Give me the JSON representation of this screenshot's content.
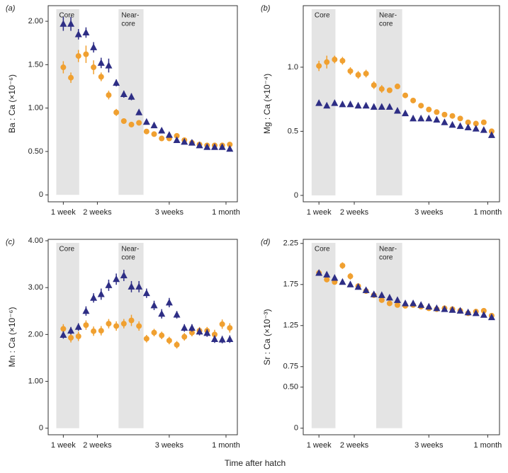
{
  "axis_label": "Time after hatch",
  "chart_data": [
    {
      "type": "scatter",
      "panel": "(a)",
      "ylabel": "Ba : Ca (×10⁻⁶)",
      "x": [
        1,
        2,
        3,
        4,
        5,
        6,
        7,
        8,
        9,
        10,
        11,
        12,
        13,
        14,
        15,
        16,
        17,
        18,
        19,
        20,
        21,
        22,
        23
      ],
      "xlim": [
        -1,
        24
      ],
      "xticks": [
        {
          "value": 1,
          "label": "1 week"
        },
        {
          "value": 5.5,
          "label": "2 weeks"
        },
        {
          "value": 15,
          "label": "3 weeks"
        },
        {
          "value": 22.5,
          "label": "1 month"
        }
      ],
      "ylim": [
        -0.08,
        2.18
      ],
      "yticks": [
        0,
        {
          "value": 0.5,
          "label": "0.50"
        },
        {
          "value": 1,
          "label": "1.00"
        },
        {
          "value": 1.5,
          "label": "1.50"
        },
        {
          "value": 2,
          "label": "2.00"
        }
      ],
      "bands": [
        {
          "label": [
            "Core"
          ],
          "x": [
            0.07,
            3.1
          ]
        },
        {
          "label": [
            "Near-",
            "core"
          ],
          "x": [
            8.3,
            11.6
          ]
        }
      ],
      "series": [
        {
          "color": "#f0a030",
          "marker": "circle",
          "values": [
            1.47,
            1.35,
            1.6,
            1.62,
            1.47,
            1.36,
            1.15,
            0.95,
            0.85,
            0.81,
            0.83,
            0.73,
            0.7,
            0.65,
            0.65,
            0.68,
            0.63,
            0.6,
            0.58,
            0.57,
            0.57,
            0.57,
            0.58
          ],
          "errors": [
            0.07,
            0.06,
            0.07,
            0.1,
            0.08,
            0.05,
            0.05,
            0.04,
            0.03,
            0.03,
            0.03,
            0.03,
            0.03,
            0.03,
            0.03,
            0.03,
            0.02,
            0.02,
            0.02,
            0.02,
            0.02,
            0.02,
            0.02
          ]
        },
        {
          "color": "#2e2e85",
          "marker": "triangle",
          "values": [
            1.97,
            1.97,
            1.85,
            1.87,
            1.7,
            1.52,
            1.49,
            1.29,
            1.16,
            1.13,
            0.95,
            0.84,
            0.8,
            0.74,
            0.69,
            0.63,
            0.61,
            0.6,
            0.57,
            0.55,
            0.55,
            0.55,
            0.53
          ],
          "errors": [
            0.08,
            0.08,
            0.06,
            0.06,
            0.06,
            0.06,
            0.08,
            0.04,
            0.04,
            0.04,
            0.03,
            0.03,
            0.03,
            0.02,
            0.02,
            0.02,
            0.02,
            0.02,
            0.02,
            0.02,
            0.02,
            0.02,
            0.02
          ]
        }
      ]
    },
    {
      "type": "scatter",
      "panel": "(b)",
      "ylabel": "Mg : Ca (×10⁻⁴)",
      "x": [
        1,
        2,
        3,
        4,
        5,
        6,
        7,
        8,
        9,
        10,
        11,
        12,
        13,
        14,
        15,
        16,
        17,
        18,
        19,
        20,
        21,
        22,
        23
      ],
      "xlim": [
        -1,
        24
      ],
      "xticks": [
        {
          "value": 1,
          "label": "1 week"
        },
        {
          "value": 5.5,
          "label": "2 weeks"
        },
        {
          "value": 15,
          "label": "3 weeks"
        },
        {
          "value": 22.5,
          "label": "1 month"
        }
      ],
      "ylim": [
        -0.05,
        1.48
      ],
      "yticks": [
        0,
        0.5,
        {
          "value": 1,
          "label": "1.0"
        }
      ],
      "bands": [
        {
          "label": [
            "Core"
          ],
          "x": [
            0.07,
            3.1
          ]
        },
        {
          "label": [
            "Near-",
            "core"
          ],
          "x": [
            8.3,
            11.6
          ]
        }
      ],
      "series": [
        {
          "color": "#f0a030",
          "marker": "circle",
          "values": [
            1.01,
            1.04,
            1.06,
            1.05,
            0.97,
            0.94,
            0.95,
            0.86,
            0.83,
            0.82,
            0.85,
            0.78,
            0.74,
            0.7,
            0.67,
            0.65,
            0.63,
            0.62,
            0.6,
            0.57,
            0.56,
            0.57,
            0.5
          ],
          "errors": [
            0.04,
            0.05,
            0.03,
            0.03,
            0.03,
            0.03,
            0.03,
            0.03,
            0.03,
            0.02,
            0.02,
            0.02,
            0.02,
            0.02,
            0.02,
            0.02,
            0.02,
            0.02,
            0.02,
            0.02,
            0.02,
            0.02,
            0.02
          ]
        },
        {
          "color": "#2e2e85",
          "marker": "triangle",
          "values": [
            0.72,
            0.7,
            0.72,
            0.71,
            0.71,
            0.7,
            0.7,
            0.69,
            0.69,
            0.69,
            0.66,
            0.64,
            0.6,
            0.6,
            0.6,
            0.59,
            0.57,
            0.55,
            0.54,
            0.53,
            0.52,
            0.51,
            0.47
          ],
          "errors": [
            0.02,
            0.02,
            0.02,
            0.02,
            0.02,
            0.02,
            0.02,
            0.02,
            0.02,
            0.02,
            0.02,
            0.02,
            0.02,
            0.02,
            0.02,
            0.02,
            0.02,
            0.02,
            0.02,
            0.02,
            0.02,
            0.02,
            0.02
          ]
        }
      ]
    },
    {
      "type": "scatter",
      "panel": "(c)",
      "ylabel": "Mn : Ca (×10⁻⁶)",
      "x": [
        1,
        2,
        3,
        4,
        5,
        6,
        7,
        8,
        9,
        10,
        11,
        12,
        13,
        14,
        15,
        16,
        17,
        18,
        19,
        20,
        21,
        22,
        23
      ],
      "xlim": [
        -1,
        24
      ],
      "xticks": [
        {
          "value": 1,
          "label": "1 week"
        },
        {
          "value": 5.5,
          "label": "2 weeks"
        },
        {
          "value": 15,
          "label": "3 weeks"
        },
        {
          "value": 22.5,
          "label": "1 month"
        }
      ],
      "ylim": [
        -0.14,
        4.03
      ],
      "yticks": [
        0,
        {
          "value": 1,
          "label": "1.00"
        },
        {
          "value": 2,
          "label": "2.00"
        },
        {
          "value": 3,
          "label": "3.00"
        },
        {
          "value": 4,
          "label": "4.00"
        }
      ],
      "bands": [
        {
          "label": [
            "Core"
          ],
          "x": [
            0.07,
            3.1
          ]
        },
        {
          "label": [
            "Near-",
            "core"
          ],
          "x": [
            8.3,
            11.6
          ]
        }
      ],
      "series": [
        {
          "color": "#f0a030",
          "marker": "circle",
          "values": [
            2.12,
            1.93,
            1.96,
            2.2,
            2.07,
            2.08,
            2.23,
            2.18,
            2.23,
            2.3,
            2.18,
            1.91,
            2.04,
            1.98,
            1.87,
            1.78,
            1.95,
            2.04,
            2.08,
            2.08,
            2.0,
            2.22,
            2.14
          ],
          "errors": [
            0.1,
            0.1,
            0.1,
            0.1,
            0.1,
            0.1,
            0.1,
            0.1,
            0.1,
            0.12,
            0.1,
            0.08,
            0.08,
            0.08,
            0.08,
            0.08,
            0.08,
            0.08,
            0.08,
            0.08,
            0.1,
            0.1,
            0.1
          ]
        },
        {
          "color": "#2e2e85",
          "marker": "triangle",
          "values": [
            1.99,
            2.08,
            2.16,
            2.5,
            2.78,
            2.86,
            3.05,
            3.18,
            3.26,
            3.02,
            3.02,
            2.88,
            2.62,
            2.44,
            2.68,
            2.42,
            2.14,
            2.14,
            2.06,
            2.03,
            1.9,
            1.89,
            1.9
          ],
          "errors": [
            0.08,
            0.08,
            0.08,
            0.1,
            0.1,
            0.12,
            0.12,
            0.12,
            0.12,
            0.12,
            0.12,
            0.1,
            0.1,
            0.1,
            0.1,
            0.08,
            0.08,
            0.08,
            0.08,
            0.08,
            0.08,
            0.08,
            0.08
          ]
        }
      ]
    },
    {
      "type": "scatter",
      "panel": "(d)",
      "ylabel": "Sr : Ca (×10⁻³)",
      "x": [
        1,
        2,
        3,
        4,
        5,
        6,
        7,
        8,
        9,
        10,
        11,
        12,
        13,
        14,
        15,
        16,
        17,
        18,
        19,
        20,
        21,
        22,
        23
      ],
      "xlim": [
        -1,
        24
      ],
      "xticks": [
        {
          "value": 1,
          "label": "1 week"
        },
        {
          "value": 5.5,
          "label": "2 weeks"
        },
        {
          "value": 15,
          "label": "3 weeks"
        },
        {
          "value": 22.5,
          "label": "1 month"
        }
      ],
      "ylim": [
        -0.08,
        2.3
      ],
      "yticks": [
        0,
        {
          "value": 0.5,
          "label": "0.50"
        },
        0.75,
        1.25,
        1.75,
        2.25
      ],
      "bands": [
        {
          "label": [
            "Core"
          ],
          "x": [
            0.07,
            3.1
          ]
        },
        {
          "label": [
            "Near-",
            "core"
          ],
          "x": [
            8.3,
            11.6
          ]
        }
      ],
      "series": [
        {
          "color": "#f0a030",
          "marker": "circle",
          "values": [
            1.89,
            1.81,
            1.78,
            1.98,
            1.85,
            1.73,
            1.67,
            1.62,
            1.56,
            1.52,
            1.5,
            1.49,
            1.5,
            1.48,
            1.46,
            1.45,
            1.46,
            1.45,
            1.43,
            1.4,
            1.42,
            1.43,
            1.37
          ],
          "errors": [
            0.03,
            0.03,
            0.03,
            0.04,
            0.04,
            0.03,
            0.03,
            0.03,
            0.03,
            0.03,
            0.03,
            0.03,
            0.03,
            0.03,
            0.03,
            0.03,
            0.03,
            0.03,
            0.03,
            0.03,
            0.03,
            0.03,
            0.03
          ]
        },
        {
          "color": "#2e2e85",
          "marker": "triangle",
          "values": [
            1.89,
            1.87,
            1.83,
            1.78,
            1.75,
            1.72,
            1.68,
            1.63,
            1.62,
            1.59,
            1.56,
            1.52,
            1.52,
            1.5,
            1.48,
            1.46,
            1.45,
            1.44,
            1.43,
            1.41,
            1.4,
            1.38,
            1.35
          ],
          "errors": [
            0.03,
            0.03,
            0.03,
            0.03,
            0.03,
            0.03,
            0.03,
            0.03,
            0.03,
            0.03,
            0.03,
            0.03,
            0.03,
            0.03,
            0.03,
            0.03,
            0.03,
            0.03,
            0.03,
            0.03,
            0.03,
            0.03,
            0.03
          ]
        }
      ]
    }
  ]
}
